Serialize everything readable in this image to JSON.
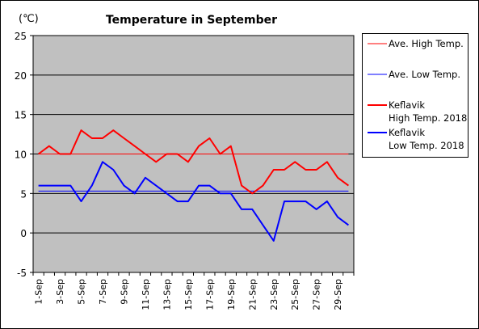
{
  "chart_data": {
    "type": "line",
    "title": "Temperature in September",
    "unit_label": "(℃)",
    "ylim": [
      -5,
      25
    ],
    "yticks": [
      -5,
      0,
      5,
      10,
      15,
      20,
      25
    ],
    "x": [
      1,
      2,
      3,
      4,
      5,
      6,
      7,
      8,
      9,
      10,
      11,
      12,
      13,
      14,
      15,
      16,
      17,
      18,
      19,
      20,
      21,
      22,
      23,
      24,
      25,
      26,
      27,
      28,
      29,
      30
    ],
    "xtick_labels": [
      "1-Sep",
      "3-Sep",
      "5-Sep",
      "7-Sep",
      "9-Sep",
      "11-Sep",
      "13-Sep",
      "15-Sep",
      "17-Sep",
      "19-Sep",
      "21-Sep",
      "23-Sep",
      "25-Sep",
      "27-Sep",
      "29-Sep"
    ],
    "grid": true,
    "legend_placement": "right",
    "series": [
      {
        "name": "Ave. High Temp.",
        "color": "#ff0000",
        "style": "thin",
        "values": [
          10,
          10,
          10,
          10,
          10,
          10,
          10,
          10,
          10,
          10,
          10,
          10,
          10,
          10,
          10,
          10,
          10,
          10,
          10,
          10,
          10,
          10,
          10,
          10,
          10,
          10,
          10,
          10,
          10,
          10
        ]
      },
      {
        "name": "Ave. Low Temp.",
        "color": "#0000ff",
        "style": "thin",
        "values": [
          5.3,
          5.3,
          5.3,
          5.3,
          5.3,
          5.3,
          5.3,
          5.3,
          5.3,
          5.3,
          5.3,
          5.3,
          5.3,
          5.3,
          5.3,
          5.3,
          5.3,
          5.3,
          5.3,
          5.3,
          5.3,
          5.3,
          5.3,
          5.3,
          5.3,
          5.3,
          5.3,
          5.3,
          5.3,
          5.3
        ]
      },
      {
        "name": "Keflavik\nHigh Temp. 2018",
        "color": "#ff0000",
        "style": "thick",
        "values": [
          10,
          11,
          10,
          10,
          13,
          12,
          12,
          13,
          12,
          11,
          10,
          9,
          10,
          10,
          9,
          11,
          12,
          10,
          11,
          6,
          5,
          6,
          8,
          8,
          9,
          8,
          8,
          9,
          7,
          6
        ]
      },
      {
        "name": "Keflavik\nLow Temp. 2018",
        "color": "#0000ff",
        "style": "thick",
        "values": [
          6,
          6,
          6,
          6,
          4,
          6,
          9,
          8,
          6,
          5,
          7,
          6,
          5,
          4,
          4,
          6,
          6,
          5,
          5,
          3,
          3,
          1,
          -1,
          4,
          4,
          4,
          3,
          4,
          2,
          1
        ]
      }
    ]
  }
}
